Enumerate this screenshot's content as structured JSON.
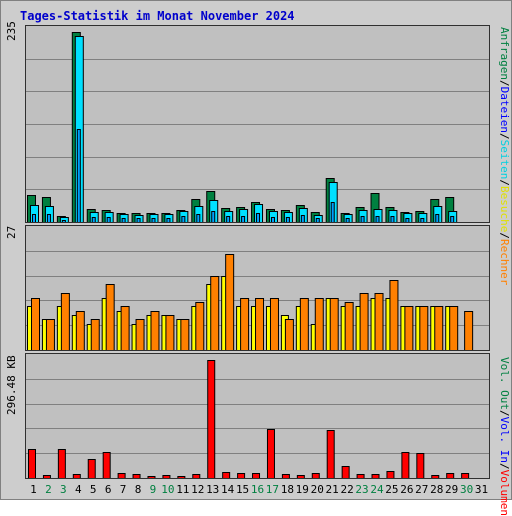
{
  "title": "Tages-Statistik im Monat November 2024",
  "colors": {
    "hits": "#008040",
    "files": "#00e0ff",
    "pages": "#00a0ff",
    "visits": "#ffff00",
    "sites": "#ff8000",
    "kbytes": "#ff0000",
    "weekend": "#008040",
    "weekday": "#000000"
  },
  "panels": {
    "top": {
      "ymax_label": "235"
    },
    "middle": {
      "ymax_label": "27"
    },
    "bottom": {
      "ymax_label": "296.48 KB"
    }
  },
  "right_labels": {
    "top": [
      {
        "text": "Anfragen",
        "color": "#008040"
      },
      {
        "text": "/",
        "color": "#000000"
      },
      {
        "text": "Dateien",
        "color": "#0000ff"
      },
      {
        "text": "/",
        "color": "#000000"
      },
      {
        "text": "Seiten",
        "color": "#00d0e0"
      },
      {
        "text": "/",
        "color": "#000000"
      },
      {
        "text": "Besuche",
        "color": "#e0e000"
      },
      {
        "text": "/",
        "color": "#000000"
      },
      {
        "text": "Rechner",
        "color": "#ff8000"
      }
    ],
    "bottom": [
      {
        "text": "Vol. Out",
        "color": "#008040"
      },
      {
        "text": "/",
        "color": "#000000"
      },
      {
        "text": "Vol. In",
        "color": "#0000ff"
      },
      {
        "text": "/",
        "color": "#000000"
      },
      {
        "text": "Volumen",
        "color": "#ff0000"
      }
    ]
  },
  "chart_data": {
    "type": "bar",
    "title": "Tages-Statistik im Monat November 2024",
    "categories": [
      "1",
      "2",
      "3",
      "4",
      "5",
      "6",
      "7",
      "8",
      "9",
      "10",
      "11",
      "12",
      "13",
      "14",
      "15",
      "16",
      "17",
      "18",
      "19",
      "20",
      "21",
      "22",
      "23",
      "24",
      "25",
      "26",
      "27",
      "28",
      "29",
      "30",
      "31"
    ],
    "weekend_days": [
      "2",
      "3",
      "9",
      "10",
      "16",
      "17",
      "23",
      "24",
      "30"
    ],
    "top_panel": {
      "ymax": 235,
      "series": [
        {
          "name": "Anfragen",
          "values": [
            34,
            31,
            8,
            235,
            16,
            15,
            11,
            11,
            11,
            11,
            15,
            29,
            38,
            17,
            18,
            25,
            16,
            15,
            21,
            12,
            54,
            11,
            18,
            36,
            19,
            12,
            13,
            29,
            31,
            0,
            0
          ]
        },
        {
          "name": "Dateien",
          "values": [
            21,
            20,
            6,
            230,
            12,
            12,
            10,
            9,
            10,
            10,
            14,
            20,
            27,
            14,
            16,
            22,
            13,
            12,
            17,
            9,
            50,
            10,
            15,
            16,
            15,
            11,
            11,
            20,
            14,
            0,
            0
          ]
        },
        {
          "name": "Seiten",
          "values": [
            21,
            20,
            6,
            230,
            12,
            12,
            10,
            9,
            10,
            10,
            14,
            20,
            27,
            14,
            16,
            22,
            13,
            12,
            17,
            9,
            50,
            10,
            15,
            16,
            15,
            11,
            11,
            20,
            14,
            0,
            0
          ]
        }
      ]
    },
    "middle_panel": {
      "ymax": 27,
      "series": [
        {
          "name": "Besuche",
          "values": [
            10,
            7,
            10,
            8,
            6,
            12,
            9,
            6,
            8,
            8,
            7,
            10,
            15,
            17,
            10,
            10,
            10,
            8,
            10,
            6,
            12,
            10,
            10,
            12,
            12,
            10,
            10,
            10,
            10,
            0,
            0
          ]
        },
        {
          "name": "Rechner",
          "values": [
            12,
            7,
            13,
            9,
            7,
            15,
            10,
            7,
            9,
            8,
            7,
            11,
            17,
            22,
            12,
            12,
            12,
            7,
            12,
            12,
            12,
            11,
            13,
            13,
            16,
            10,
            10,
            10,
            10,
            9,
            0
          ]
        }
      ]
    },
    "bottom_panel": {
      "ymax": 296.48,
      "unit": "KB",
      "series": [
        {
          "name": "Volumen",
          "values": [
            72,
            8,
            73,
            9,
            48,
            65,
            13,
            9,
            6,
            7,
            6,
            10,
            296,
            15,
            12,
            12,
            122,
            9,
            8,
            12,
            120,
            29,
            9,
            9,
            17,
            66,
            63,
            7,
            12,
            13,
            0
          ]
        }
      ]
    }
  }
}
